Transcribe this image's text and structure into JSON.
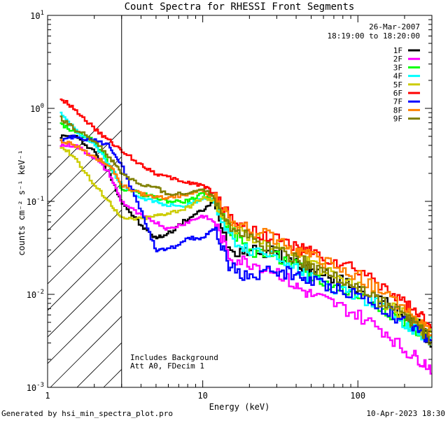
{
  "chart_data": {
    "type": "line",
    "title": "Count Spectra for RHESSI Front Segments",
    "xlabel": "Energy (keV)",
    "ylabel": "counts cm⁻² s⁻¹ keV⁻¹",
    "xscale": "log",
    "yscale": "log",
    "xlim": [
      1,
      300
    ],
    "ylim": [
      0.001,
      10
    ],
    "x_ticks": [
      {
        "value": 1,
        "label": "1"
      },
      {
        "value": 10,
        "label": "10"
      },
      {
        "value": 100,
        "label": "100"
      }
    ],
    "y_ticks": [
      {
        "value": 0.001,
        "base": "10",
        "exp": "-3"
      },
      {
        "value": 0.01,
        "base": "10",
        "exp": "-2"
      },
      {
        "value": 0.1,
        "base": "10",
        "exp": "-1"
      },
      {
        "value": 1,
        "base": "10",
        "exp": "0"
      },
      {
        "value": 10,
        "base": "10",
        "exp": "1"
      }
    ],
    "hatched_region": {
      "from": 1,
      "to": 3
    },
    "legend_title_lines": [
      "26-Mar-2007",
      "18:19:00 to 18:20:00"
    ],
    "legend_position": "top-right",
    "annotations": [
      "Includes Background",
      "Att A0, FDecim 1"
    ],
    "x": [
      1.2,
      1.5,
      2,
      2.5,
      3,
      4,
      5,
      6,
      8,
      10,
      12,
      15,
      20,
      30,
      40,
      50,
      70,
      100,
      150,
      200,
      250,
      300
    ],
    "series": [
      {
        "name": "1F",
        "color": "#000000",
        "values": [
          0.5,
          0.5,
          0.35,
          0.2,
          0.1,
          0.055,
          0.04,
          0.045,
          0.065,
          0.08,
          0.1,
          0.03,
          0.03,
          0.028,
          0.022,
          0.018,
          0.015,
          0.012,
          0.008,
          0.006,
          0.0045,
          0.003
        ]
      },
      {
        "name": "2F",
        "color": "#ff00ff",
        "values": [
          0.4,
          0.4,
          0.3,
          0.2,
          0.1,
          0.07,
          0.06,
          0.05,
          0.06,
          0.07,
          0.06,
          0.025,
          0.022,
          0.018,
          0.012,
          0.01,
          0.008,
          0.006,
          0.004,
          0.0025,
          0.002,
          0.0016
        ]
      },
      {
        "name": "3F",
        "color": "#00ff00",
        "values": [
          0.7,
          0.55,
          0.45,
          0.25,
          0.14,
          0.12,
          0.11,
          0.1,
          0.1,
          0.12,
          0.1,
          0.05,
          0.03,
          0.025,
          0.02,
          0.016,
          0.012,
          0.01,
          0.007,
          0.005,
          0.004,
          0.003
        ]
      },
      {
        "name": "4F",
        "color": "#00ffff",
        "values": [
          0.9,
          0.6,
          0.4,
          0.25,
          0.15,
          0.11,
          0.1,
          0.09,
          0.09,
          0.11,
          0.1,
          0.04,
          0.03,
          0.026,
          0.02,
          0.015,
          0.012,
          0.01,
          0.007,
          0.005,
          0.004,
          0.003
        ]
      },
      {
        "name": "5F",
        "color": "#cccc00",
        "values": [
          0.4,
          0.3,
          0.15,
          0.1,
          0.065,
          0.065,
          0.07,
          0.075,
          0.085,
          0.11,
          0.1,
          0.055,
          0.04,
          0.035,
          0.028,
          0.022,
          0.016,
          0.012,
          0.008,
          0.006,
          0.0045,
          0.0035
        ]
      },
      {
        "name": "6F",
        "color": "#ff0000",
        "values": [
          1.3,
          1.0,
          0.6,
          0.45,
          0.35,
          0.25,
          0.2,
          0.18,
          0.16,
          0.15,
          0.12,
          0.07,
          0.05,
          0.04,
          0.032,
          0.028,
          0.022,
          0.018,
          0.012,
          0.008,
          0.006,
          0.004
        ]
      },
      {
        "name": "7F",
        "color": "#0000ff",
        "values": [
          0.45,
          0.5,
          0.45,
          0.4,
          0.25,
          0.08,
          0.03,
          0.03,
          0.04,
          0.04,
          0.05,
          0.02,
          0.015,
          0.018,
          0.016,
          0.014,
          0.012,
          0.01,
          0.007,
          0.005,
          0.004,
          0.003
        ]
      },
      {
        "name": "8F",
        "color": "#ff8000",
        "values": [
          0.45,
          0.4,
          0.3,
          0.25,
          0.15,
          0.12,
          0.11,
          0.11,
          0.12,
          0.13,
          0.11,
          0.06,
          0.05,
          0.04,
          0.03,
          0.025,
          0.02,
          0.016,
          0.01,
          0.007,
          0.005,
          0.0035
        ]
      },
      {
        "name": "9F",
        "color": "#808000",
        "values": [
          0.8,
          0.6,
          0.45,
          0.3,
          0.2,
          0.15,
          0.14,
          0.12,
          0.12,
          0.14,
          0.11,
          0.055,
          0.04,
          0.03,
          0.025,
          0.02,
          0.016,
          0.012,
          0.008,
          0.006,
          0.0045,
          0.003
        ]
      }
    ]
  },
  "footer": {
    "left": "Generated by hsi_min_spectra_plot.pro",
    "right": "10-Apr-2023 18:30"
  }
}
